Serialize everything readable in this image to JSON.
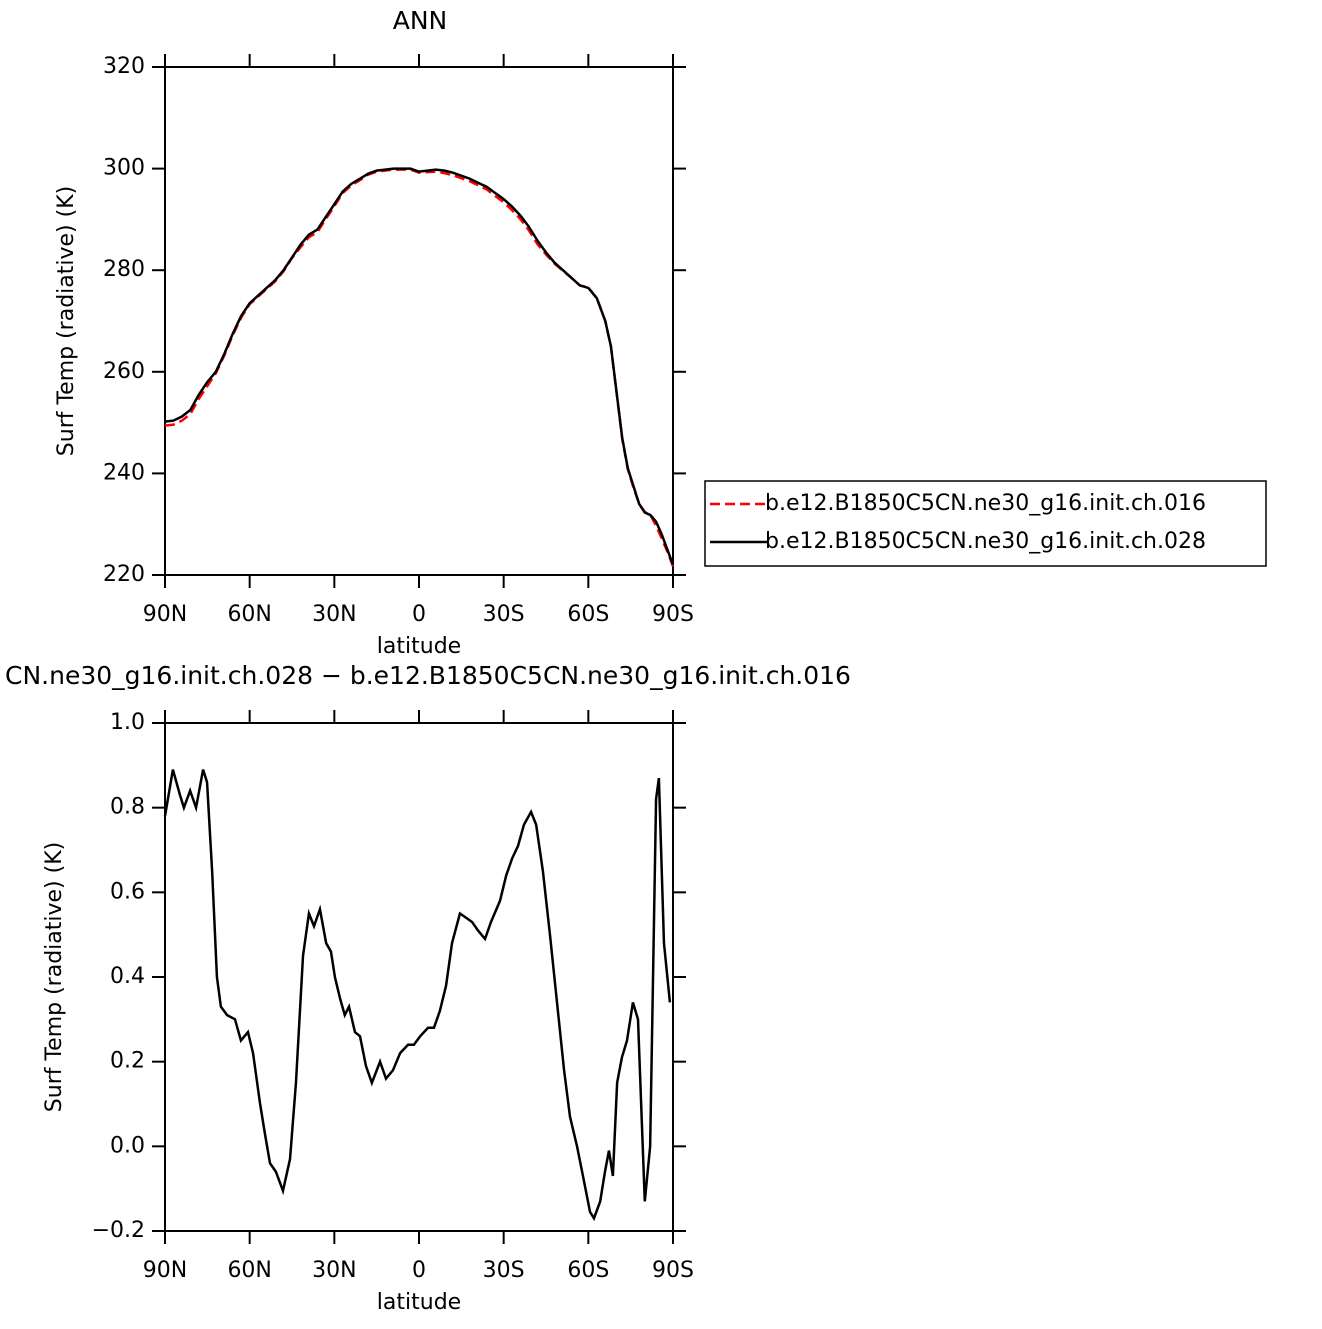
{
  "chart_data": [
    {
      "type": "line",
      "title": "ANN",
      "xlabel": "latitude",
      "ylabel": "Surf Temp (radiative) (K)",
      "x": [
        90,
        87,
        84,
        81,
        78,
        75,
        72,
        69,
        66,
        63,
        60,
        57,
        54,
        51,
        48,
        45,
        42,
        39,
        36,
        33,
        30,
        27,
        24,
        21,
        18,
        15,
        12,
        9,
        6,
        3,
        0,
        -3,
        -6,
        -9,
        -12,
        -15,
        -18,
        -21,
        -24,
        -27,
        -30,
        -33,
        -36,
        -39,
        -42,
        -45,
        -48,
        -51,
        -54,
        -57,
        -60,
        -63,
        -66,
        -68,
        -70,
        -72,
        -74,
        -76,
        -78,
        -80,
        -82,
        -84,
        -86,
        -88,
        -90
      ],
      "xlim": [
        90,
        -90
      ],
      "xticks": [
        {
          "value": 90,
          "label": "90N"
        },
        {
          "value": 60,
          "label": "60N"
        },
        {
          "value": 30,
          "label": "30N"
        },
        0,
        {
          "value": -30,
          "label": "30S"
        },
        {
          "value": -60,
          "label": "60S"
        },
        {
          "value": -90,
          "label": "90S"
        }
      ],
      "ylim": [
        220,
        320
      ],
      "yticks": [
        220,
        240,
        260,
        280,
        300,
        320
      ],
      "legend": "right",
      "series": [
        {
          "name": "b.e12.B1850C5CN.ne30_g16.init.ch.016",
          "color": "#ff0000",
          "dash": "dashed",
          "values": [
            249.4,
            249.6,
            250.4,
            251.7,
            254.7,
            257.2,
            259.7,
            263.2,
            267.2,
            270.7,
            273.3,
            274.8,
            276.3,
            277.8,
            279.8,
            282.4,
            284.5,
            286.5,
            287.5,
            290.1,
            292.6,
            295.2,
            296.7,
            297.7,
            298.8,
            299.4,
            299.6,
            299.8,
            299.8,
            299.8,
            299.2,
            299.3,
            299.4,
            299.1,
            298.7,
            298.1,
            297.5,
            296.7,
            295.9,
            294.6,
            293.4,
            291.8,
            290.0,
            287.8,
            285.1,
            283.1,
            281.3,
            279.9,
            278.5,
            277.0,
            276.6,
            274.5,
            270.0,
            265.0,
            255.9,
            246.8,
            240.8,
            237.2,
            234.0,
            232.4,
            231.8,
            229.7,
            227.2,
            224.6,
            221.7
          ]
        },
        {
          "name": "b.e12.B1850C5CN.ne30_g16.init.ch.028",
          "color": "#000000",
          "dash": "solid",
          "values": [
            250.2,
            250.4,
            251.2,
            252.5,
            255.5,
            258.0,
            260.0,
            263.5,
            267.5,
            271.0,
            273.5,
            275.0,
            276.5,
            278.0,
            280.0,
            282.5,
            285.0,
            287.0,
            288.0,
            290.5,
            293.0,
            295.5,
            297.0,
            298.0,
            299.0,
            299.6,
            299.8,
            300.0,
            300.0,
            300.0,
            299.4,
            299.6,
            299.8,
            299.6,
            299.2,
            298.6,
            298.0,
            297.2,
            296.4,
            295.2,
            294.0,
            292.5,
            290.7,
            288.5,
            285.8,
            283.5,
            281.5,
            280.0,
            278.5,
            277.0,
            276.5,
            274.5,
            270.0,
            265.0,
            256.0,
            247.0,
            241.0,
            237.5,
            234.0,
            232.3,
            231.8,
            230.5,
            228.0,
            225.0,
            222.0
          ]
        }
      ]
    },
    {
      "type": "line",
      "title": "CN.ne30_g16.init.ch.028 − b.e12.B1850C5CN.ne30_g16.init.ch.016",
      "xlabel": "latitude",
      "ylabel": "Surf Temp (radiative) (K)",
      "x": [
        90,
        87.2,
        84.7,
        83.3,
        81.1,
        79,
        76.5,
        75.1,
        73.3,
        71.6,
        70.2,
        68,
        65.2,
        63.1,
        60.6,
        58.8,
        56.3,
        54.6,
        52.8,
        50.7,
        48.2,
        45.7,
        43.6,
        41.1,
        39,
        37.2,
        35.1,
        32.9,
        31.2,
        29.8,
        28,
        26.3,
        24.8,
        22.7,
        20.9,
        18.8,
        16.7,
        13.8,
        11.7,
        9.2,
        6.7,
        3.9,
        1.8,
        -0.4,
        -3.2,
        -5.3,
        -7.4,
        -9.6,
        -11.7,
        -14.5,
        -16.7,
        -18.8,
        -20.9,
        -23.4,
        -25.5,
        -28.7,
        -30.9,
        -33,
        -35.1,
        -37.2,
        -39.7,
        -41.5,
        -43.9,
        -46.4,
        -48.9,
        -51.4,
        -53.5,
        -56,
        -58.1,
        -60.6,
        -62,
        -64.2,
        -65.9,
        -67.3,
        -68.7,
        -70.2,
        -71.9,
        -73.7,
        -75.8,
        -77.6,
        -80,
        -81.9,
        -84,
        -85,
        -86.8,
        -88.9
      ],
      "xlim": [
        90,
        -90
      ],
      "xticks": [
        {
          "value": 90,
          "label": "90N"
        },
        {
          "value": 60,
          "label": "60N"
        },
        {
          "value": 30,
          "label": "30N"
        },
        0,
        {
          "value": -30,
          "label": "30S"
        },
        {
          "value": -60,
          "label": "60S"
        },
        {
          "value": -90,
          "label": "90S"
        }
      ],
      "ylim": [
        -0.2,
        1.0
      ],
      "yticks": [
        {
          "value": -0.2,
          "label": "−0.2"
        },
        {
          "value": 0,
          "label": "0.0"
        },
        0.2,
        0.4,
        0.6,
        0.8,
        {
          "value": 1,
          "label": "1.0"
        }
      ],
      "series": [
        {
          "color": "#000000",
          "dash": "solid",
          "values": [
            0.78,
            0.89,
            0.83,
            0.8,
            0.84,
            0.8,
            0.89,
            0.86,
            0.65,
            0.4,
            0.33,
            0.31,
            0.3,
            0.25,
            0.27,
            0.22,
            0.1,
            0.03,
            -0.04,
            -0.06,
            -0.105,
            -0.03,
            0.15,
            0.45,
            0.55,
            0.52,
            0.56,
            0.48,
            0.46,
            0.4,
            0.35,
            0.31,
            0.33,
            0.27,
            0.26,
            0.19,
            0.15,
            0.2,
            0.16,
            0.18,
            0.22,
            0.24,
            0.24,
            0.26,
            0.28,
            0.28,
            0.32,
            0.38,
            0.48,
            0.55,
            0.54,
            0.53,
            0.51,
            0.49,
            0.53,
            0.58,
            0.64,
            0.68,
            0.71,
            0.76,
            0.79,
            0.76,
            0.65,
            0.5,
            0.34,
            0.18,
            0.07,
            0.0,
            -0.07,
            -0.155,
            -0.17,
            -0.13,
            -0.06,
            -0.01,
            -0.07,
            0.15,
            0.21,
            0.25,
            0.34,
            0.3,
            -0.13,
            0.0,
            0.82,
            0.87,
            0.48,
            0.34
          ]
        }
      ]
    }
  ]
}
